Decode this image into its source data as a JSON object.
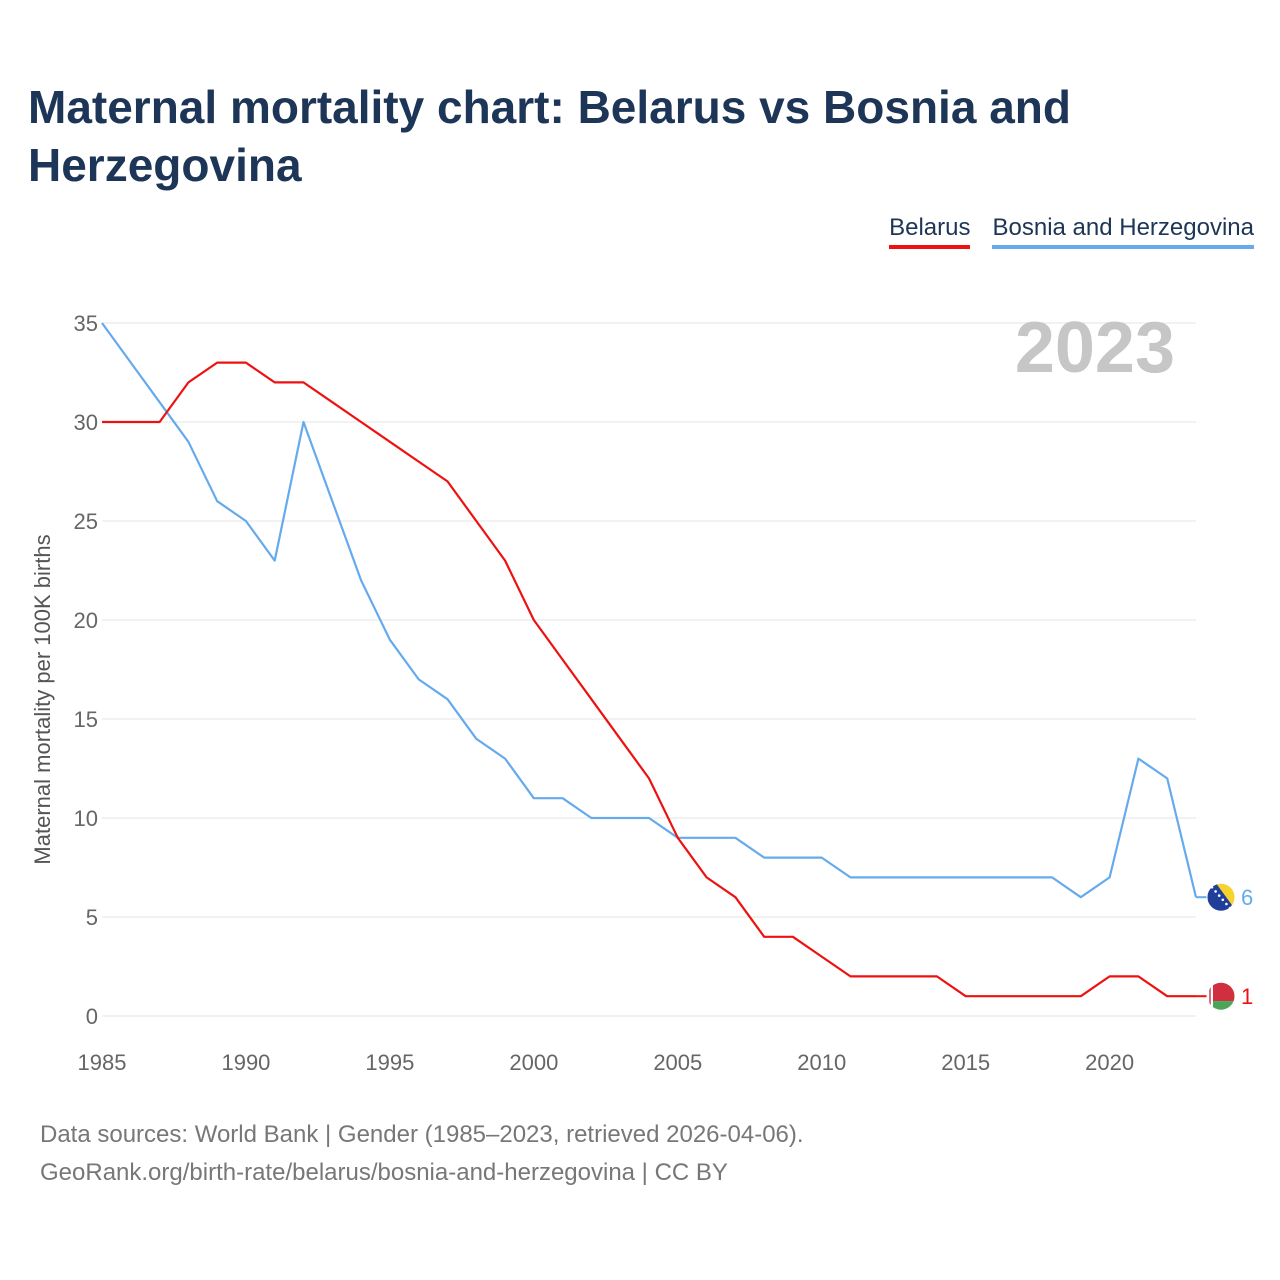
{
  "title": "Maternal mortality chart: Belarus vs Bosnia and Herzegovina",
  "year_label": "2023",
  "footer": {
    "sources": "Data sources: World Bank | Gender (1985–2023, retrieved 2026-04-06).",
    "credit": "GeoRank.org/birth-rate/belarus/bosnia-and-herzegovina | CC BY"
  },
  "chart_data": {
    "type": "line",
    "title": "Maternal mortality chart: Belarus vs Bosnia and Herzegovina",
    "xlabel": "",
    "ylabel": "Maternal mortality per 100K births",
    "xlim": [
      1985,
      2023
    ],
    "ylim": [
      0,
      35
    ],
    "x_ticks": [
      1985,
      1990,
      1995,
      2000,
      2005,
      2010,
      2015,
      2020
    ],
    "y_ticks": [
      0,
      5,
      10,
      15,
      20,
      25,
      30,
      35
    ],
    "grid": true,
    "legend_position": "top-right",
    "x": [
      1985,
      1986,
      1987,
      1988,
      1989,
      1990,
      1991,
      1992,
      1993,
      1994,
      1995,
      1996,
      1997,
      1998,
      1999,
      2000,
      2001,
      2002,
      2003,
      2004,
      2005,
      2006,
      2007,
      2008,
      2009,
      2010,
      2011,
      2012,
      2013,
      2014,
      2015,
      2016,
      2017,
      2018,
      2019,
      2020,
      2021,
      2022,
      2023
    ],
    "series": [
      {
        "name": "Belarus",
        "color": "#ee1111",
        "end_label": "1",
        "values": [
          30,
          30,
          30,
          32,
          33,
          33,
          32,
          32,
          31,
          30,
          29,
          28,
          27,
          25,
          23,
          20,
          18,
          16,
          14,
          12,
          9,
          7,
          6,
          4,
          4,
          3,
          2,
          2,
          2,
          2,
          1,
          1,
          1,
          1,
          1,
          2,
          2,
          1,
          1
        ]
      },
      {
        "name": "Bosnia and Herzegovina",
        "color": "#66aaee",
        "end_label": "6",
        "values": [
          35,
          33,
          31,
          29,
          26,
          25,
          23,
          30,
          26,
          22,
          19,
          17,
          16,
          14,
          13,
          11,
          11,
          10,
          10,
          10,
          9,
          9,
          9,
          8,
          8,
          8,
          7,
          7,
          7,
          7,
          7,
          7,
          7,
          7,
          6,
          7,
          13,
          12,
          6
        ]
      }
    ]
  }
}
